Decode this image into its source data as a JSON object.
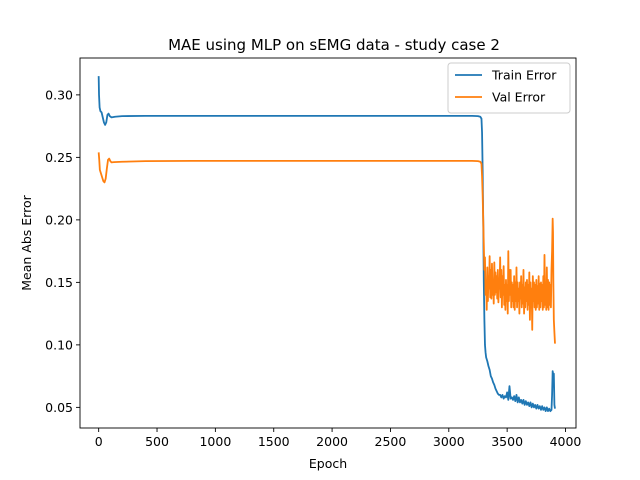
{
  "chart_data": {
    "type": "line",
    "title": "MAE using MLP on sEMG data - study case 2",
    "xlabel": "Epoch",
    "ylabel": "Mean Abs Error",
    "xlim": [
      -160,
      4090
    ],
    "ylim": [
      0.0335,
      0.3295
    ],
    "xticks": [
      0,
      500,
      1000,
      1500,
      2000,
      2500,
      3000,
      3500,
      4000
    ],
    "xtick_labels": [
      "0",
      "500",
      "1000",
      "1500",
      "2000",
      "2500",
      "3000",
      "3500",
      "4000"
    ],
    "yticks": [
      0.05,
      0.1,
      0.15,
      0.2,
      0.25,
      0.3
    ],
    "ytick_labels": [
      "0.05",
      "0.10",
      "0.15",
      "0.20",
      "0.25",
      "0.30"
    ],
    "grid": false,
    "legend_position": "top-right",
    "series": [
      {
        "name": "Train Error",
        "color": "#1f77b4",
        "points": [
          [
            0,
            0.315
          ],
          [
            3,
            0.3
          ],
          [
            8,
            0.29
          ],
          [
            15,
            0.287
          ],
          [
            25,
            0.286
          ],
          [
            35,
            0.282
          ],
          [
            45,
            0.278
          ],
          [
            55,
            0.276
          ],
          [
            65,
            0.278
          ],
          [
            75,
            0.284
          ],
          [
            85,
            0.285
          ],
          [
            95,
            0.283
          ],
          [
            110,
            0.282
          ],
          [
            140,
            0.2825
          ],
          [
            200,
            0.283
          ],
          [
            400,
            0.2832
          ],
          [
            800,
            0.2832
          ],
          [
            1500,
            0.2832
          ],
          [
            2000,
            0.2832
          ],
          [
            2500,
            0.2832
          ],
          [
            3000,
            0.2832
          ],
          [
            3200,
            0.2832
          ],
          [
            3250,
            0.283
          ],
          [
            3270,
            0.2825
          ],
          [
            3280,
            0.281
          ],
          [
            3285,
            0.27
          ],
          [
            3290,
            0.24
          ],
          [
            3295,
            0.2
          ],
          [
            3300,
            0.15
          ],
          [
            3305,
            0.12
          ],
          [
            3310,
            0.1
          ],
          [
            3315,
            0.094
          ],
          [
            3320,
            0.09
          ],
          [
            3330,
            0.087
          ],
          [
            3340,
            0.083
          ],
          [
            3350,
            0.08
          ],
          [
            3360,
            0.075
          ],
          [
            3370,
            0.073
          ],
          [
            3380,
            0.07
          ],
          [
            3390,
            0.068
          ],
          [
            3400,
            0.065
          ],
          [
            3410,
            0.063
          ],
          [
            3420,
            0.061
          ],
          [
            3430,
            0.06
          ],
          [
            3440,
            0.06
          ],
          [
            3450,
            0.058
          ],
          [
            3460,
            0.06
          ],
          [
            3470,
            0.057
          ],
          [
            3480,
            0.059
          ],
          [
            3490,
            0.058
          ],
          [
            3500,
            0.062
          ],
          [
            3510,
            0.056
          ],
          [
            3520,
            0.067
          ],
          [
            3530,
            0.057
          ],
          [
            3540,
            0.058
          ],
          [
            3550,
            0.056
          ],
          [
            3560,
            0.059
          ],
          [
            3570,
            0.055
          ],
          [
            3580,
            0.06
          ],
          [
            3590,
            0.054
          ],
          [
            3600,
            0.058
          ],
          [
            3610,
            0.054
          ],
          [
            3620,
            0.056
          ],
          [
            3630,
            0.053
          ],
          [
            3640,
            0.056
          ],
          [
            3650,
            0.052
          ],
          [
            3660,
            0.055
          ],
          [
            3670,
            0.052
          ],
          [
            3680,
            0.054
          ],
          [
            3690,
            0.051
          ],
          [
            3700,
            0.054
          ],
          [
            3710,
            0.05
          ],
          [
            3720,
            0.053
          ],
          [
            3730,
            0.05
          ],
          [
            3740,
            0.052
          ],
          [
            3750,
            0.049
          ],
          [
            3760,
            0.052
          ],
          [
            3770,
            0.049
          ],
          [
            3780,
            0.051
          ],
          [
            3790,
            0.048
          ],
          [
            3800,
            0.051
          ],
          [
            3810,
            0.048
          ],
          [
            3820,
            0.05
          ],
          [
            3830,
            0.047
          ],
          [
            3840,
            0.05
          ],
          [
            3850,
            0.047
          ],
          [
            3860,
            0.049
          ],
          [
            3870,
            0.047
          ],
          [
            3880,
            0.048
          ],
          [
            3885,
            0.06
          ],
          [
            3890,
            0.079
          ],
          [
            3895,
            0.076
          ],
          [
            3900,
            0.077
          ],
          [
            3905,
            0.052
          ],
          [
            3910,
            0.049
          ]
        ]
      },
      {
        "name": "Val Error",
        "color": "#ff7f0e",
        "points": [
          [
            0,
            0.254
          ],
          [
            5,
            0.248
          ],
          [
            10,
            0.24
          ],
          [
            20,
            0.237
          ],
          [
            30,
            0.234
          ],
          [
            40,
            0.231
          ],
          [
            50,
            0.23
          ],
          [
            60,
            0.233
          ],
          [
            70,
            0.241
          ],
          [
            80,
            0.248
          ],
          [
            90,
            0.249
          ],
          [
            100,
            0.247
          ],
          [
            110,
            0.246
          ],
          [
            130,
            0.2462
          ],
          [
            200,
            0.2465
          ],
          [
            400,
            0.247
          ],
          [
            800,
            0.2472
          ],
          [
            1500,
            0.2472
          ],
          [
            2000,
            0.2472
          ],
          [
            2500,
            0.2472
          ],
          [
            3000,
            0.2472
          ],
          [
            3200,
            0.2472
          ],
          [
            3250,
            0.247
          ],
          [
            3270,
            0.2465
          ],
          [
            3280,
            0.245
          ],
          [
            3285,
            0.235
          ],
          [
            3290,
            0.22
          ],
          [
            3295,
            0.2
          ],
          [
            3300,
            0.18
          ],
          [
            3305,
            0.16
          ],
          [
            3310,
            0.17
          ],
          [
            3315,
            0.14
          ],
          [
            3320,
            0.15
          ],
          [
            3325,
            0.128
          ],
          [
            3330,
            0.162
          ],
          [
            3335,
            0.135
          ],
          [
            3340,
            0.155
          ],
          [
            3345,
            0.145
          ],
          [
            3350,
            0.171
          ],
          [
            3355,
            0.138
          ],
          [
            3360,
            0.16
          ],
          [
            3365,
            0.137
          ],
          [
            3370,
            0.165
          ],
          [
            3375,
            0.14
          ],
          [
            3380,
            0.15
          ],
          [
            3385,
            0.133
          ],
          [
            3390,
            0.166
          ],
          [
            3395,
            0.14
          ],
          [
            3400,
            0.158
          ],
          [
            3405,
            0.142
          ],
          [
            3410,
            0.155
          ],
          [
            3415,
            0.137
          ],
          [
            3420,
            0.16
          ],
          [
            3425,
            0.134
          ],
          [
            3430,
            0.15
          ],
          [
            3435,
            0.145
          ],
          [
            3440,
            0.17
          ],
          [
            3445,
            0.138
          ],
          [
            3450,
            0.16
          ],
          [
            3455,
            0.13
          ],
          [
            3460,
            0.155
          ],
          [
            3465,
            0.14
          ],
          [
            3470,
            0.163
          ],
          [
            3475,
            0.132
          ],
          [
            3480,
            0.148
          ],
          [
            3485,
            0.128
          ],
          [
            3490,
            0.152
          ],
          [
            3495,
            0.135
          ],
          [
            3500,
            0.148
          ],
          [
            3505,
            0.125
          ],
          [
            3510,
            0.175
          ],
          [
            3515,
            0.135
          ],
          [
            3520,
            0.16
          ],
          [
            3525,
            0.14
          ],
          [
            3530,
            0.16
          ],
          [
            3535,
            0.13
          ],
          [
            3540,
            0.15
          ],
          [
            3545,
            0.135
          ],
          [
            3550,
            0.148
          ],
          [
            3555,
            0.13
          ],
          [
            3560,
            0.155
          ],
          [
            3565,
            0.128
          ],
          [
            3570,
            0.15
          ],
          [
            3575,
            0.135
          ],
          [
            3580,
            0.162
          ],
          [
            3585,
            0.13
          ],
          [
            3590,
            0.15
          ],
          [
            3595,
            0.135
          ],
          [
            3600,
            0.145
          ],
          [
            3605,
            0.125
          ],
          [
            3610,
            0.15
          ],
          [
            3615,
            0.137
          ],
          [
            3620,
            0.155
          ],
          [
            3625,
            0.13
          ],
          [
            3630,
            0.148
          ],
          [
            3635,
            0.133
          ],
          [
            3640,
            0.16
          ],
          [
            3645,
            0.125
          ],
          [
            3650,
            0.146
          ],
          [
            3655,
            0.13
          ],
          [
            3660,
            0.15
          ],
          [
            3665,
            0.135
          ],
          [
            3670,
            0.152
          ],
          [
            3675,
            0.128
          ],
          [
            3680,
            0.148
          ],
          [
            3685,
            0.132
          ],
          [
            3690,
            0.158
          ],
          [
            3695,
            0.12
          ],
          [
            3700,
            0.15
          ],
          [
            3705,
            0.13
          ],
          [
            3710,
            0.145
          ],
          [
            3715,
            0.112
          ],
          [
            3720,
            0.155
          ],
          [
            3725,
            0.135
          ],
          [
            3730,
            0.15
          ],
          [
            3735,
            0.13
          ],
          [
            3740,
            0.148
          ],
          [
            3745,
            0.128
          ],
          [
            3750,
            0.152
          ],
          [
            3755,
            0.13
          ],
          [
            3760,
            0.147
          ],
          [
            3765,
            0.133
          ],
          [
            3770,
            0.155
          ],
          [
            3775,
            0.128
          ],
          [
            3780,
            0.149
          ],
          [
            3785,
            0.13
          ],
          [
            3790,
            0.15
          ],
          [
            3795,
            0.135
          ],
          [
            3800,
            0.148
          ],
          [
            3805,
            0.128
          ],
          [
            3810,
            0.155
          ],
          [
            3815,
            0.13
          ],
          [
            3820,
            0.172
          ],
          [
            3825,
            0.132
          ],
          [
            3830,
            0.15
          ],
          [
            3835,
            0.128
          ],
          [
            3840,
            0.162
          ],
          [
            3845,
            0.13
          ],
          [
            3850,
            0.152
          ],
          [
            3855,
            0.128
          ],
          [
            3860,
            0.15
          ],
          [
            3865,
            0.132
          ],
          [
            3870,
            0.148
          ],
          [
            3875,
            0.13
          ],
          [
            3880,
            0.16
          ],
          [
            3885,
            0.175
          ],
          [
            3890,
            0.201
          ],
          [
            3893,
            0.19
          ],
          [
            3896,
            0.15
          ],
          [
            3900,
            0.12
          ],
          [
            3905,
            0.11
          ],
          [
            3910,
            0.101
          ]
        ]
      }
    ]
  }
}
